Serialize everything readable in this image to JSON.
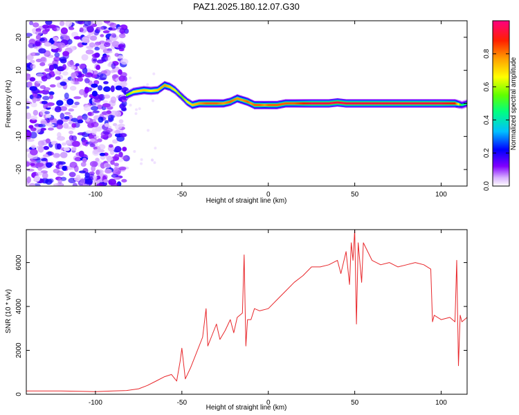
{
  "title": "PAZ1.2025.180.12.07.G30",
  "chart_data": [
    {
      "type": "heatmap",
      "title": "PAZ1.2025.180.12.07.G30",
      "xlabel": "Height of straight line (km)",
      "ylabel": "Frequency (Hz)",
      "xlim": [
        -140,
        115
      ],
      "ylim": [
        -25,
        25
      ],
      "x_ticks": [
        -100,
        -50,
        0,
        50,
        100
      ],
      "y_ticks": [
        -20,
        -10,
        0,
        10,
        20
      ],
      "colorbar": {
        "label": "Normalized spectral amplitude",
        "range": [
          0,
          1
        ],
        "ticks": [
          0.0,
          0.2,
          0.4,
          0.6,
          0.8
        ],
        "colormap": [
          "#ffffff",
          "#d9b3ff",
          "#8000ff",
          "#0000ff",
          "#00c0ff",
          "#00ff80",
          "#60ff00",
          "#ffff00",
          "#ffa000",
          "#ff2000",
          "#ff0080"
        ]
      },
      "noise_region": {
        "x": [
          -140,
          -82
        ],
        "y": [
          -25,
          25
        ],
        "amplitude": [
          0.05,
          0.3
        ]
      },
      "carrier_track": {
        "x": [
          -82,
          -78,
          -72,
          -68,
          -64,
          -60,
          -57,
          -54,
          -50,
          -47,
          -44,
          -40,
          -36,
          -30,
          -26,
          -22,
          -18,
          -15,
          -12,
          -10,
          -8,
          -5,
          -2,
          0,
          5,
          10,
          15,
          20,
          25,
          35,
          40,
          45,
          50,
          60,
          80,
          100,
          108,
          112,
          115
        ],
        "frequency": [
          2.5,
          3.5,
          4,
          3.8,
          4,
          5.5,
          5,
          4,
          2,
          0.5,
          -0.5,
          0,
          0,
          0,
          0,
          0.5,
          1.5,
          1,
          0.5,
          0,
          -0.5,
          -0.5,
          -0.5,
          -0.5,
          -0.5,
          0,
          0,
          0,
          0,
          0,
          0.3,
          0,
          0,
          0,
          0,
          0,
          0,
          -0.5,
          0
        ],
        "amplitude": [
          0.6,
          0.7,
          0.75,
          0.7,
          0.75,
          0.8,
          0.75,
          0.7,
          0.6,
          0.7,
          0.75,
          0.8,
          0.85,
          0.85,
          0.8,
          0.85,
          0.8,
          0.8,
          0.85,
          0.8,
          0.85,
          0.85,
          0.8,
          0.85,
          0.85,
          0.85,
          0.85,
          0.9,
          0.95,
          0.95,
          0.95,
          0.95,
          0.95,
          0.95,
          0.95,
          0.95,
          0.9,
          0.5,
          0.5
        ]
      }
    },
    {
      "type": "line",
      "xlabel": "Height of straight line (km)",
      "ylabel": "SNR (10 * v/v)",
      "xlim": [
        -140,
        115
      ],
      "ylim": [
        0,
        7500
      ],
      "x_ticks": [
        -100,
        -50,
        0,
        50,
        100
      ],
      "y_ticks": [
        0,
        2000,
        4000,
        6000
      ],
      "color": "#e8262a",
      "series": [
        {
          "x": [
            -140,
            -120,
            -100,
            -90,
            -82,
            -75,
            -70,
            -65,
            -60,
            -56,
            -53,
            -51,
            -50,
            -48,
            -45,
            -42,
            -38,
            -36,
            -35,
            -33,
            -30,
            -28,
            -25,
            -22,
            -20,
            -18,
            -15,
            -14,
            -13,
            -12,
            -10,
            -8,
            -5,
            0,
            5,
            10,
            15,
            20,
            25,
            30,
            35,
            40,
            42,
            45,
            47,
            48,
            49,
            50,
            51,
            52,
            54,
            55,
            60,
            65,
            70,
            75,
            80,
            85,
            90,
            94,
            95,
            96,
            100,
            105,
            108,
            109,
            110,
            111,
            112,
            115
          ],
          "y": [
            150,
            150,
            120,
            150,
            170,
            250,
            400,
            600,
            800,
            900,
            600,
            1500,
            2100,
            700,
            1200,
            1800,
            2600,
            3900,
            2200,
            2600,
            3200,
            2500,
            2900,
            3400,
            2800,
            3500,
            3700,
            6350,
            2200,
            3400,
            3400,
            3900,
            3800,
            3900,
            4300,
            4700,
            5100,
            5400,
            5800,
            5800,
            5900,
            6100,
            5500,
            6500,
            5000,
            6900,
            6100,
            7500,
            3200,
            6900,
            5100,
            6900,
            6100,
            5900,
            6000,
            5800,
            5900,
            6000,
            5900,
            5700,
            3300,
            3600,
            3400,
            3500,
            3300,
            6100,
            1300,
            3600,
            3300,
            3500
          ]
        }
      ]
    }
  ]
}
